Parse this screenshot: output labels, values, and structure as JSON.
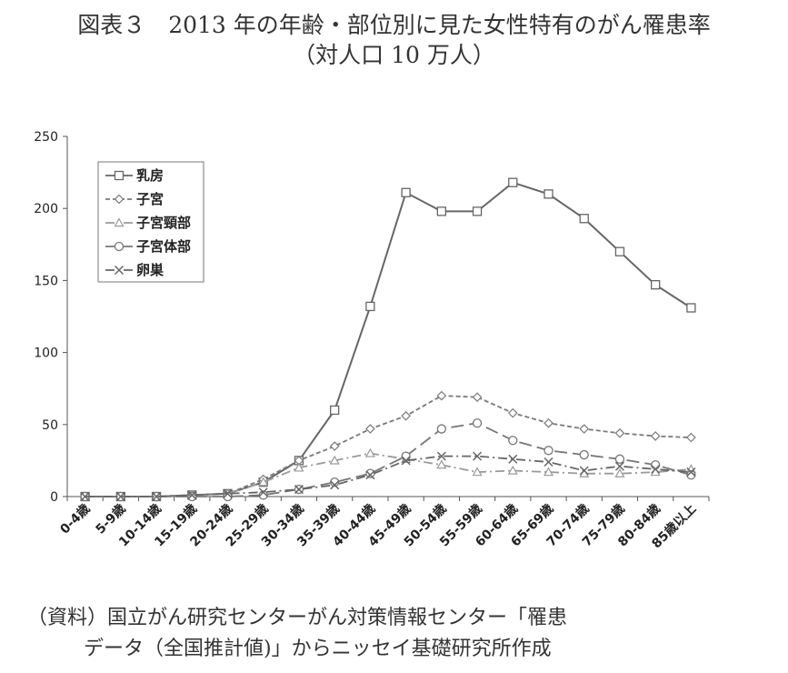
{
  "title": {
    "line1": "図表３　2013 年の年齢・部位別に見た女性特有のがん罹患率",
    "line2": "（対人口 10 万人）"
  },
  "source": {
    "line1": "（資料）国立がん研究センターがん対策情報センター「罹患",
    "line2": "データ（全国推計値)」からニッセイ基礎研究所作成"
  },
  "chart_data": {
    "type": "line",
    "categories": [
      "0-4歳",
      "5-9歳",
      "10-14歳",
      "15-19歳",
      "20-24歳",
      "25-29歳",
      "30-34歳",
      "35-39歳",
      "40-44歳",
      "45-49歳",
      "50-54歳",
      "55-59歳",
      "60-64歳",
      "65-69歳",
      "70-74歳",
      "75-79歳",
      "80-84歳",
      "85歳以上"
    ],
    "ylim": [
      0,
      250
    ],
    "yticks": [
      0,
      50,
      100,
      150,
      200,
      250
    ],
    "grid": false,
    "legend_position": "top-left",
    "series": [
      {
        "name": "乳房",
        "marker": "square",
        "dash": "solid",
        "color": "#666666",
        "values": [
          0,
          0,
          0,
          1,
          2,
          10,
          25,
          60,
          132,
          211,
          198,
          198,
          218,
          210,
          193,
          170,
          147,
          131
        ]
      },
      {
        "name": "子宮",
        "marker": "diamond",
        "dash": "dashed",
        "color": "#7a7a7a",
        "values": [
          0,
          0,
          0,
          1,
          2,
          12,
          25,
          35,
          47,
          56,
          70,
          69,
          58,
          51,
          47,
          44,
          42,
          41
        ]
      },
      {
        "name": "子宮頸部",
        "marker": "triangle",
        "dash": "dashdot",
        "color": "#9a9a9a",
        "values": [
          0,
          0,
          0,
          1,
          2,
          10,
          20,
          25,
          30,
          26,
          22,
          17,
          18,
          17,
          16,
          16,
          17,
          19
        ]
      },
      {
        "name": "子宮体部",
        "marker": "circle",
        "dash": "longdash",
        "color": "#777777",
        "values": [
          0,
          0,
          0,
          0,
          0,
          1,
          5,
          10,
          16,
          28,
          47,
          51,
          39,
          32,
          29,
          26,
          22,
          15
        ]
      },
      {
        "name": "卵巣",
        "marker": "cross",
        "dash": "dashdot",
        "color": "#666666",
        "values": [
          0,
          0,
          0,
          1,
          2,
          3,
          5,
          8,
          15,
          25,
          28,
          28,
          26,
          24,
          18,
          21,
          19,
          17
        ]
      }
    ]
  }
}
